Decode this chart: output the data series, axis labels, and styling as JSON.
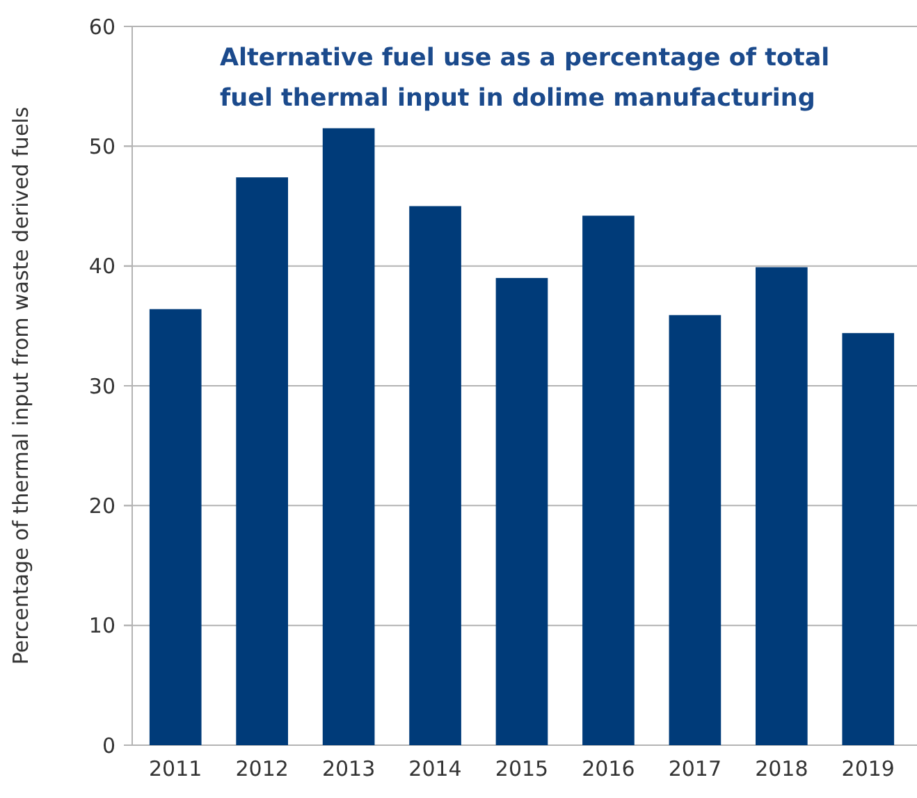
{
  "chart_data": {
    "type": "bar",
    "title": "Alternative fuel use as a percentage of total fuel thermal input in dolime manufacturing",
    "ylabel": "Percentage of thermal input from waste derived fuels",
    "categories": [
      "2011",
      "2012",
      "2013",
      "2014",
      "2015",
      "2016",
      "2017",
      "2018",
      "2019"
    ],
    "values": [
      36.4,
      47.4,
      51.5,
      45.0,
      39.0,
      44.2,
      35.9,
      39.9,
      34.4
    ],
    "color": "#003b79",
    "ylim": [
      0,
      60
    ],
    "yticks": [
      0,
      10,
      20,
      30,
      40,
      50,
      60
    ],
    "grid": "y"
  }
}
